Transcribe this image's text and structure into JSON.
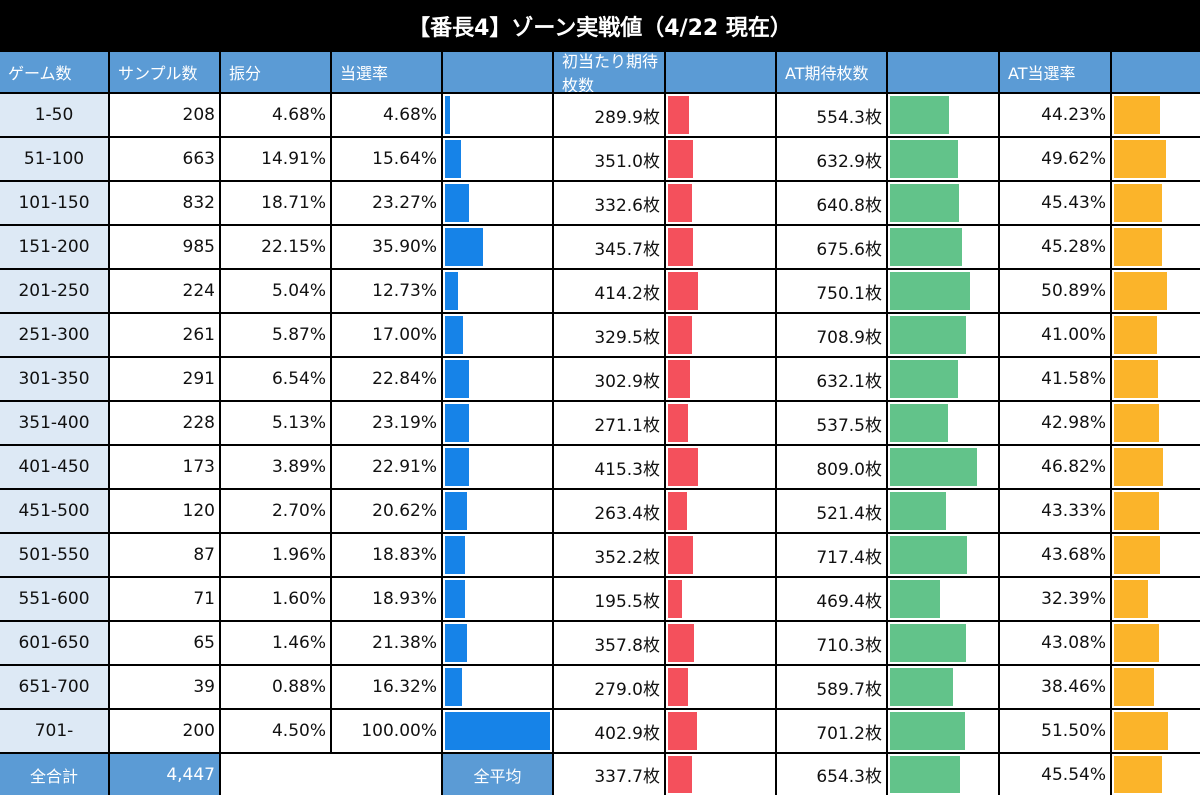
{
  "title": "【番長4】ゾーン実戦値（4/22 現在）",
  "colors": {
    "header_bg": "#5b9bd5",
    "zone_bg": "#dde9f5",
    "bar_select": "#1683e8",
    "bar_medal": "#f4505c",
    "bar_at_medal": "#62c38a",
    "bar_at_rate": "#fbb42a"
  },
  "headers": {
    "zone": "ゲーム数",
    "samples": "サンプル数",
    "distribution": "振分",
    "select_rate": "当選率",
    "select_bar": "",
    "first_hit_medals": "初当たり期待枚数",
    "first_hit_bar": "",
    "at_medals": "AT期待枚数",
    "at_medals_bar": "",
    "at_rate": "AT当選率",
    "at_rate_bar": ""
  },
  "rows": [
    {
      "zone": "1-50",
      "samples": "208",
      "distribution": "4.68%",
      "select_rate": "4.68%",
      "first_hit_medals": "289.9枚",
      "at_medals": "554.3枚",
      "at_rate": "44.23%",
      "select_v": 4.68,
      "first_hit_v": 289.9,
      "at_medals_v": 554.3,
      "at_rate_v": 44.23
    },
    {
      "zone": "51-100",
      "samples": "663",
      "distribution": "14.91%",
      "select_rate": "15.64%",
      "first_hit_medals": "351.0枚",
      "at_medals": "632.9枚",
      "at_rate": "49.62%",
      "select_v": 15.64,
      "first_hit_v": 351.0,
      "at_medals_v": 632.9,
      "at_rate_v": 49.62
    },
    {
      "zone": "101-150",
      "samples": "832",
      "distribution": "18.71%",
      "select_rate": "23.27%",
      "first_hit_medals": "332.6枚",
      "at_medals": "640.8枚",
      "at_rate": "45.43%",
      "select_v": 23.27,
      "first_hit_v": 332.6,
      "at_medals_v": 640.8,
      "at_rate_v": 45.43
    },
    {
      "zone": "151-200",
      "samples": "985",
      "distribution": "22.15%",
      "select_rate": "35.90%",
      "first_hit_medals": "345.7枚",
      "at_medals": "675.6枚",
      "at_rate": "45.28%",
      "select_v": 35.9,
      "first_hit_v": 345.7,
      "at_medals_v": 675.6,
      "at_rate_v": 45.28
    },
    {
      "zone": "201-250",
      "samples": "224",
      "distribution": "5.04%",
      "select_rate": "12.73%",
      "first_hit_medals": "414.2枚",
      "at_medals": "750.1枚",
      "at_rate": "50.89%",
      "select_v": 12.73,
      "first_hit_v": 414.2,
      "at_medals_v": 750.1,
      "at_rate_v": 50.89
    },
    {
      "zone": "251-300",
      "samples": "261",
      "distribution": "5.87%",
      "select_rate": "17.00%",
      "first_hit_medals": "329.5枚",
      "at_medals": "708.9枚",
      "at_rate": "41.00%",
      "select_v": 17.0,
      "first_hit_v": 329.5,
      "at_medals_v": 708.9,
      "at_rate_v": 41.0
    },
    {
      "zone": "301-350",
      "samples": "291",
      "distribution": "6.54%",
      "select_rate": "22.84%",
      "first_hit_medals": "302.9枚",
      "at_medals": "632.1枚",
      "at_rate": "41.58%",
      "select_v": 22.84,
      "first_hit_v": 302.9,
      "at_medals_v": 632.1,
      "at_rate_v": 41.58
    },
    {
      "zone": "351-400",
      "samples": "228",
      "distribution": "5.13%",
      "select_rate": "23.19%",
      "first_hit_medals": "271.1枚",
      "at_medals": "537.5枚",
      "at_rate": "42.98%",
      "select_v": 23.19,
      "first_hit_v": 271.1,
      "at_medals_v": 537.5,
      "at_rate_v": 42.98
    },
    {
      "zone": "401-450",
      "samples": "173",
      "distribution": "3.89%",
      "select_rate": "22.91%",
      "first_hit_medals": "415.3枚",
      "at_medals": "809.0枚",
      "at_rate": "46.82%",
      "select_v": 22.91,
      "first_hit_v": 415.3,
      "at_medals_v": 809.0,
      "at_rate_v": 46.82
    },
    {
      "zone": "451-500",
      "samples": "120",
      "distribution": "2.70%",
      "select_rate": "20.62%",
      "first_hit_medals": "263.4枚",
      "at_medals": "521.4枚",
      "at_rate": "43.33%",
      "select_v": 20.62,
      "first_hit_v": 263.4,
      "at_medals_v": 521.4,
      "at_rate_v": 43.33
    },
    {
      "zone": "501-550",
      "samples": "87",
      "distribution": "1.96%",
      "select_rate": "18.83%",
      "first_hit_medals": "352.2枚",
      "at_medals": "717.4枚",
      "at_rate": "43.68%",
      "select_v": 18.83,
      "first_hit_v": 352.2,
      "at_medals_v": 717.4,
      "at_rate_v": 43.68
    },
    {
      "zone": "551-600",
      "samples": "71",
      "distribution": "1.60%",
      "select_rate": "18.93%",
      "first_hit_medals": "195.5枚",
      "at_medals": "469.4枚",
      "at_rate": "32.39%",
      "select_v": 18.93,
      "first_hit_v": 195.5,
      "at_medals_v": 469.4,
      "at_rate_v": 32.39
    },
    {
      "zone": "601-650",
      "samples": "65",
      "distribution": "1.46%",
      "select_rate": "21.38%",
      "first_hit_medals": "357.8枚",
      "at_medals": "710.3枚",
      "at_rate": "43.08%",
      "select_v": 21.38,
      "first_hit_v": 357.8,
      "at_medals_v": 710.3,
      "at_rate_v": 43.08
    },
    {
      "zone": "651-700",
      "samples": "39",
      "distribution": "0.88%",
      "select_rate": "16.32%",
      "first_hit_medals": "279.0枚",
      "at_medals": "589.7枚",
      "at_rate": "38.46%",
      "select_v": 16.32,
      "first_hit_v": 279.0,
      "at_medals_v": 589.7,
      "at_rate_v": 38.46
    },
    {
      "zone": "701-",
      "samples": "200",
      "distribution": "4.50%",
      "select_rate": "100.00%",
      "first_hit_medals": "402.9枚",
      "at_medals": "701.2枚",
      "at_rate": "51.50%",
      "select_v": 100.0,
      "first_hit_v": 402.9,
      "at_medals_v": 701.2,
      "at_rate_v": 51.5
    }
  ],
  "footer": {
    "total_label": "全合計",
    "total_samples": "4,447",
    "average_label": "全平均",
    "first_hit_medals": "337.7枚",
    "at_medals": "654.3枚",
    "at_rate": "45.54%",
    "first_hit_v": 337.7,
    "at_medals_v": 654.3,
    "at_rate_v": 45.54
  },
  "bar_scale_max": {
    "select": 100,
    "first_hit": 1000,
    "at_medals": 1000,
    "at_rate": 100
  }
}
